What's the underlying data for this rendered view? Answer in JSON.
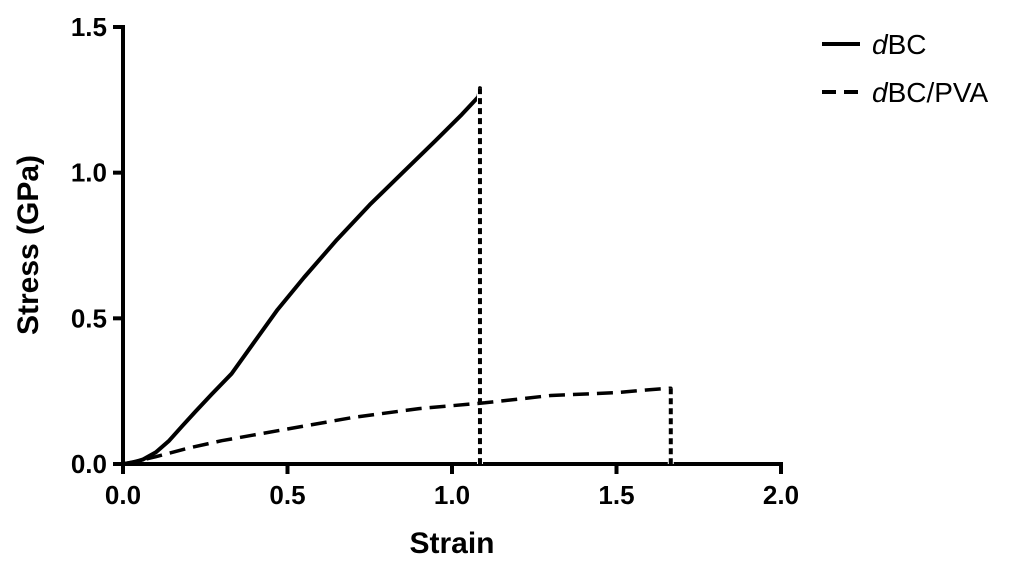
{
  "chart_data": {
    "type": "line",
    "title": "",
    "xlabel": "Strain",
    "ylabel": "Stress (GPa)",
    "xlim": [
      0,
      2.0
    ],
    "ylim": [
      0,
      1.5
    ],
    "x_ticks": [
      "0.0",
      "0.5",
      "1.0",
      "1.5",
      "2.0"
    ],
    "y_ticks": [
      "0.0",
      "0.5",
      "1.0",
      "1.5"
    ],
    "grid": false,
    "legend_position": "top-right",
    "series": [
      {
        "name": "dBC",
        "name_prefix": "d",
        "name_suffix": "BC",
        "style": "solid",
        "x": [
          0.0,
          0.03,
          0.06,
          0.1,
          0.14,
          0.18,
          0.22,
          0.27,
          0.33,
          0.4,
          0.47,
          0.55,
          0.65,
          0.75,
          0.85,
          0.95,
          1.03,
          1.08,
          1.085,
          1.085
        ],
        "y": [
          0.0,
          0.005,
          0.015,
          0.04,
          0.08,
          0.13,
          0.18,
          0.24,
          0.31,
          0.42,
          0.53,
          0.64,
          0.77,
          0.89,
          1.0,
          1.11,
          1.2,
          1.26,
          1.29,
          0.0
        ]
      },
      {
        "name": "dBC/PVA",
        "name_prefix": "d",
        "name_suffix": "BC/PVA",
        "style": "dashed",
        "x": [
          0.0,
          0.05,
          0.1,
          0.2,
          0.3,
          0.5,
          0.7,
          0.9,
          1.1,
          1.3,
          1.5,
          1.6,
          1.66,
          1.665,
          1.665
        ],
        "y": [
          0.0,
          0.012,
          0.025,
          0.055,
          0.08,
          0.12,
          0.16,
          0.19,
          0.21,
          0.235,
          0.245,
          0.255,
          0.26,
          0.26,
          0.0
        ]
      }
    ]
  }
}
